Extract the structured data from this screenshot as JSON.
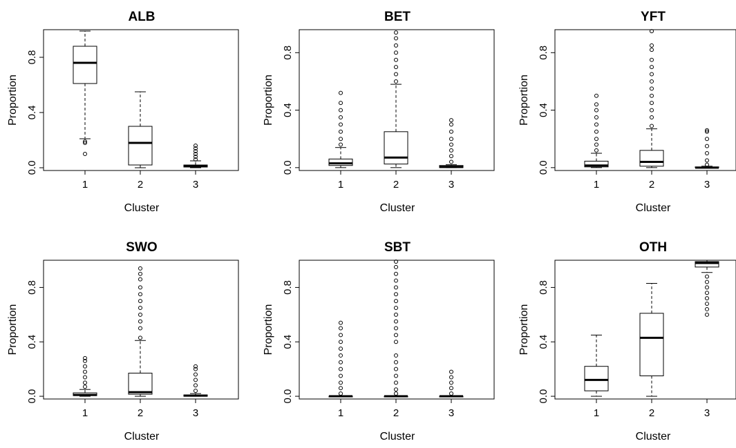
{
  "chart_data": [
    {
      "type": "boxplot",
      "title": "ALB",
      "xlabel": "Cluster",
      "ylabel": "Proportion",
      "categories": [
        "1",
        "2",
        "3"
      ],
      "yticks": [
        "0.0",
        "0.4",
        "0.8"
      ],
      "ylim": [
        -0.02,
        1.0
      ],
      "boxes": [
        {
          "q1": 0.61,
          "median": 0.76,
          "q3": 0.88,
          "whisker_low": 0.21,
          "whisker_high": 0.99,
          "outliers": [
            0.19,
            0.18,
            0.1
          ]
        },
        {
          "q1": 0.02,
          "median": 0.18,
          "q3": 0.3,
          "whisker_low": 0.0,
          "whisker_high": 0.55,
          "outliers": []
        },
        {
          "q1": 0.005,
          "median": 0.01,
          "q3": 0.02,
          "whisker_low": 0.0,
          "whisker_high": 0.05,
          "outliers": [
            0.06,
            0.08,
            0.1,
            0.12,
            0.14,
            0.16
          ]
        }
      ]
    },
    {
      "type": "boxplot",
      "title": "BET",
      "xlabel": "Cluster",
      "ylabel": "Proportion",
      "categories": [
        "1",
        "2",
        "3"
      ],
      "yticks": [
        "0.0",
        "0.4",
        "0.8"
      ],
      "ylim": [
        -0.02,
        0.96
      ],
      "boxes": [
        {
          "q1": 0.015,
          "median": 0.03,
          "q3": 0.06,
          "whisker_low": 0.0,
          "whisker_high": 0.14,
          "outliers": [
            0.16,
            0.2,
            0.25,
            0.3,
            0.35,
            0.4,
            0.45,
            0.52
          ]
        },
        {
          "q1": 0.025,
          "median": 0.07,
          "q3": 0.25,
          "whisker_low": 0.0,
          "whisker_high": 0.58,
          "outliers": [
            0.6,
            0.65,
            0.7,
            0.75,
            0.8,
            0.85,
            0.9,
            0.94
          ]
        },
        {
          "q1": 0.0,
          "median": 0.005,
          "q3": 0.015,
          "whisker_low": 0.0,
          "whisker_high": 0.02,
          "outliers": [
            0.04,
            0.08,
            0.12,
            0.16,
            0.2,
            0.25,
            0.3,
            0.33
          ]
        }
      ]
    },
    {
      "type": "boxplot",
      "title": "YFT",
      "xlabel": "Cluster",
      "ylabel": "Proportion",
      "categories": [
        "1",
        "2",
        "3"
      ],
      "yticks": [
        "0.0",
        "0.4",
        "0.8"
      ],
      "ylim": [
        -0.02,
        0.96
      ],
      "boxes": [
        {
          "q1": 0.005,
          "median": 0.015,
          "q3": 0.045,
          "whisker_low": 0.0,
          "whisker_high": 0.1,
          "outliers": [
            0.12,
            0.16,
            0.2,
            0.25,
            0.3,
            0.35,
            0.4,
            0.44,
            0.5
          ]
        },
        {
          "q1": 0.01,
          "median": 0.04,
          "q3": 0.12,
          "whisker_low": 0.0,
          "whisker_high": 0.27,
          "outliers": [
            0.29,
            0.35,
            0.4,
            0.45,
            0.5,
            0.55,
            0.6,
            0.65,
            0.7,
            0.75,
            0.82,
            0.85,
            0.95
          ]
        },
        {
          "q1": 0.0,
          "median": 0.0,
          "q3": 0.005,
          "whisker_low": 0.0,
          "whisker_high": 0.01,
          "outliers": [
            0.02,
            0.05,
            0.1,
            0.15,
            0.2,
            0.25,
            0.26
          ]
        }
      ]
    },
    {
      "type": "boxplot",
      "title": "SWO",
      "xlabel": "Cluster",
      "ylabel": "Proportion",
      "categories": [
        "1",
        "2",
        "3"
      ],
      "yticks": [
        "0.0",
        "0.4",
        "0.8"
      ],
      "ylim": [
        -0.02,
        1.0
      ],
      "boxes": [
        {
          "q1": 0.005,
          "median": 0.01,
          "q3": 0.025,
          "whisker_low": 0.0,
          "whisker_high": 0.05,
          "outliers": [
            0.07,
            0.1,
            0.14,
            0.18,
            0.22,
            0.26,
            0.28
          ]
        },
        {
          "q1": 0.015,
          "median": 0.03,
          "q3": 0.17,
          "whisker_low": 0.0,
          "whisker_high": 0.41,
          "outliers": [
            0.43,
            0.5,
            0.55,
            0.6,
            0.65,
            0.7,
            0.75,
            0.8,
            0.86,
            0.9,
            0.94
          ]
        },
        {
          "q1": 0.0,
          "median": 0.005,
          "q3": 0.01,
          "whisker_low": 0.0,
          "whisker_high": 0.02,
          "outliers": [
            0.04,
            0.08,
            0.12,
            0.16,
            0.2,
            0.22
          ]
        }
      ]
    },
    {
      "type": "boxplot",
      "title": "SBT",
      "xlabel": "Cluster",
      "ylabel": "Proportion",
      "categories": [
        "1",
        "2",
        "3"
      ],
      "yticks": [
        "0.0",
        "0.4",
        "0.8"
      ],
      "ylim": [
        -0.02,
        1.0
      ],
      "boxes": [
        {
          "q1": 0.0,
          "median": 0.0,
          "q3": 0.0,
          "whisker_low": 0.0,
          "whisker_high": 0.0,
          "outliers": [
            0.02,
            0.06,
            0.1,
            0.15,
            0.2,
            0.25,
            0.3,
            0.35,
            0.4,
            0.45,
            0.5,
            0.54
          ]
        },
        {
          "q1": 0.0,
          "median": 0.0,
          "q3": 0.0,
          "whisker_low": 0.0,
          "whisker_high": 0.0,
          "outliers": [
            0.02,
            0.05,
            0.1,
            0.15,
            0.2,
            0.25,
            0.3,
            0.4,
            0.45,
            0.5,
            0.55,
            0.6,
            0.65,
            0.7,
            0.75,
            0.8,
            0.85,
            0.9,
            0.95,
            0.99
          ]
        },
        {
          "q1": 0.0,
          "median": 0.0,
          "q3": 0.0,
          "whisker_low": 0.0,
          "whisker_high": 0.0,
          "outliers": [
            0.02,
            0.06,
            0.1,
            0.14,
            0.18
          ]
        }
      ]
    },
    {
      "type": "boxplot",
      "title": "OTH",
      "xlabel": "Cluster",
      "ylabel": "Proportion",
      "categories": [
        "1",
        "2",
        "3"
      ],
      "yticks": [
        "0.0",
        "0.4",
        "0.8"
      ],
      "ylim": [
        -0.02,
        1.0
      ],
      "boxes": [
        {
          "q1": 0.04,
          "median": 0.12,
          "q3": 0.22,
          "whisker_low": 0.0,
          "whisker_high": 0.45,
          "outliers": []
        },
        {
          "q1": 0.15,
          "median": 0.43,
          "q3": 0.61,
          "whisker_low": 0.0,
          "whisker_high": 0.83,
          "outliers": []
        },
        {
          "q1": 0.95,
          "median": 0.98,
          "q3": 0.99,
          "whisker_low": 0.91,
          "whisker_high": 1.0,
          "outliers": [
            0.88,
            0.84,
            0.8,
            0.76,
            0.72,
            0.68,
            0.64,
            0.6
          ]
        }
      ]
    }
  ]
}
